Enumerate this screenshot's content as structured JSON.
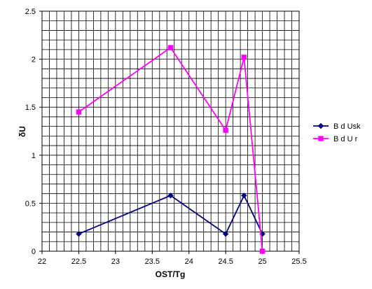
{
  "chart_data": {
    "type": "line",
    "xlabel": "OST/Tg",
    "ylabel": "δU",
    "xlim": [
      22,
      25.5
    ],
    "ylim": [
      0,
      2.5
    ],
    "x_ticks": [
      "22",
      "22.5",
      "23",
      "23.5",
      "24",
      "24.5",
      "25",
      "25.5"
    ],
    "y_ticks": [
      "0",
      "0.5",
      "1",
      "1.5",
      "2",
      "2.5"
    ],
    "grid": true,
    "legend_position": "right",
    "series": [
      {
        "name": "B d Usk",
        "color": "#000080",
        "marker": "diamond",
        "x": [
          22.5,
          23.75,
          24.5,
          24.75,
          25
        ],
        "y": [
          0.18,
          0.58,
          0.18,
          0.58,
          0.18
        ]
      },
      {
        "name": "B d U r",
        "color": "#ff00ff",
        "marker": "square",
        "x": [
          22.5,
          23.75,
          24.5,
          24.75,
          25
        ],
        "y": [
          1.45,
          2.12,
          1.26,
          2.02,
          0.0
        ]
      }
    ]
  }
}
